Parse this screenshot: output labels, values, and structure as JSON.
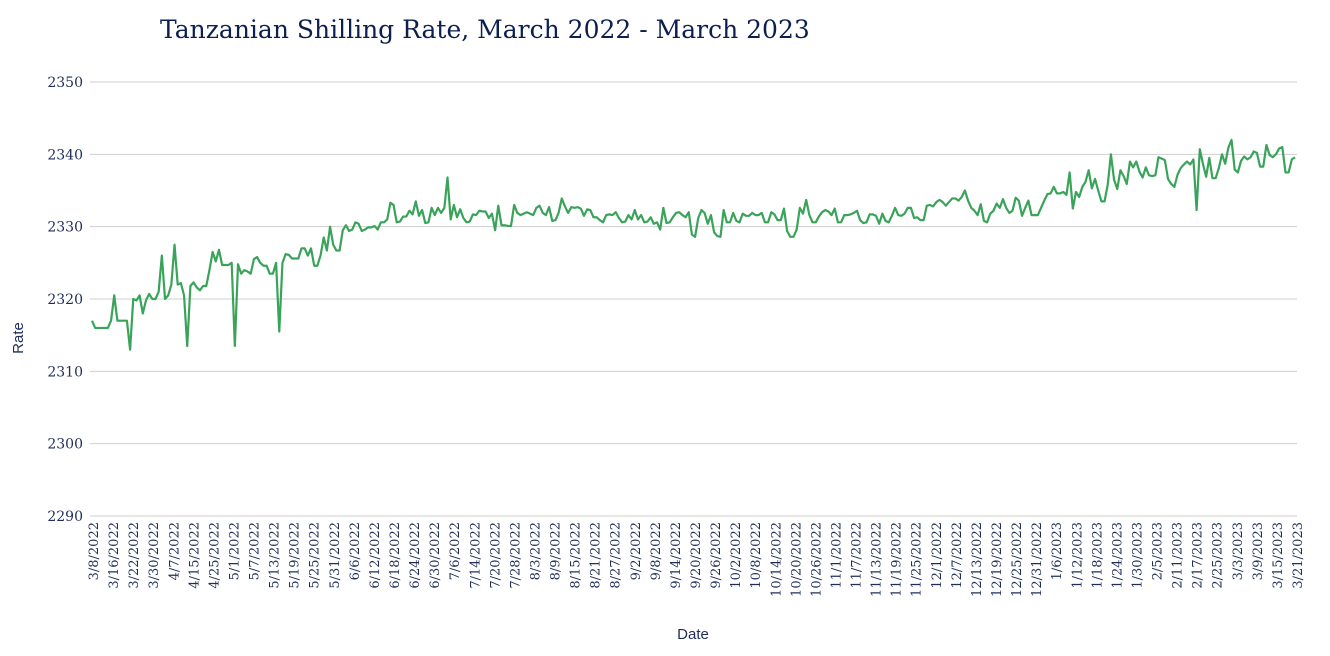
{
  "chart_data": {
    "type": "line",
    "title": "Tanzanian Shilling Rate, March 2022 - March 2023",
    "xlabel": "Date",
    "ylabel": "Rate",
    "ylim": [
      2290,
      2350
    ],
    "yticks": [
      2290,
      2300,
      2310,
      2320,
      2330,
      2340,
      2350
    ],
    "grid": true,
    "color": "#3aa35a",
    "x_tick_labels": [
      "3/8/2022",
      "3/16/2022",
      "3/22/2022",
      "3/30/2022",
      "4/7/2022",
      "4/15/2022",
      "4/25/2022",
      "5/1/2022",
      "5/7/2022",
      "5/13/2022",
      "5/19/2022",
      "5/25/2022",
      "5/31/2022",
      "6/6/2022",
      "6/12/2022",
      "6/18/2022",
      "6/24/2022",
      "6/30/2022",
      "7/6/2022",
      "7/14/2022",
      "7/20/2022",
      "7/28/2022",
      "8/3/2022",
      "8/9/2022",
      "8/15/2022",
      "8/21/2022",
      "8/27/2022",
      "9/2/2022",
      "9/8/2022",
      "9/14/2022",
      "9/20/2022",
      "9/26/2022",
      "10/2/2022",
      "10/8/2022",
      "10/14/2022",
      "10/20/2022",
      "10/26/2022",
      "11/1/2022",
      "11/7/2022",
      "11/13/2022",
      "11/19/2022",
      "11/25/2022",
      "12/1/2022",
      "12/7/2022",
      "12/13/2022",
      "12/19/2022",
      "12/25/2022",
      "12/31/2022",
      "1/6/2023",
      "1/12/2023",
      "1/18/2023",
      "1/24/2023",
      "1/30/2023",
      "2/5/2023",
      "2/11/2023",
      "2/17/2023",
      "2/25/2023",
      "3/3/2023",
      "3/9/2023",
      "3/15/2023",
      "3/21/2023"
    ],
    "series": [
      {
        "values": [
          2317,
          2316,
          2316,
          2316,
          2316,
          2316,
          2317,
          2320.5,
          2317,
          2317,
          2317,
          2317,
          2313,
          2320,
          2319.8,
          2320.5,
          2318,
          2319.8,
          2320.7,
          2320,
          2320,
          2321,
          2326,
          2320,
          2320.5,
          2322,
          2327.5,
          2322,
          2322.2,
          2320.5,
          2313.5,
          2321.8,
          2322.3,
          2321.6,
          2321.2,
          2321.8,
          2321.8,
          2324,
          2326.5,
          2325.2,
          2326.8,
          2324.7,
          2324.7,
          2324.7,
          2325,
          2313.5,
          2324.8,
          2323.5,
          2324,
          2323.8,
          2323.5,
          2325.5,
          2325.8,
          2325,
          2324.6,
          2324.6,
          2323.5,
          2323.5,
          2325,
          2315.5,
          2325,
          2326.2,
          2326.1,
          2325.6,
          2325.6,
          2325.6,
          2327,
          2327,
          2326,
          2327,
          2324.6,
          2324.6,
          2326,
          2328.5,
          2326.7,
          2330,
          2327.5,
          2326.7,
          2326.7,
          2329.5,
          2330.2,
          2329.4,
          2329.6,
          2330.6,
          2330.4,
          2329.4,
          2329.6,
          2329.9,
          2329.9,
          2330.1,
          2329.6,
          2330.6,
          2330.6,
          2331,
          2333.3,
          2333,
          2330.6,
          2330.7,
          2331.4,
          2331.4,
          2332.2,
          2331.7,
          2333.5,
          2331.5,
          2332.3,
          2330.5,
          2330.6,
          2332.6,
          2331.6,
          2332.6,
          2331.9,
          2332.6,
          2336.8,
          2331,
          2333,
          2331.3,
          2332.4,
          2331.2,
          2330.6,
          2330.7,
          2331.7,
          2331.6,
          2332.2,
          2332.1,
          2332.1,
          2331.2,
          2331.8,
          2329.5,
          2332.9,
          2330.2,
          2330.2,
          2330.1,
          2330.1,
          2333,
          2331.9,
          2331.6,
          2331.8,
          2332,
          2331.8,
          2331.6,
          2332.6,
          2332.9,
          2331.9,
          2331.6,
          2332.7,
          2330.8,
          2330.9,
          2331.9,
          2333.9,
          2332.8,
          2331.9,
          2332.7,
          2332.6,
          2332.7,
          2332.5,
          2331.5,
          2332.4,
          2332.3,
          2331.3,
          2331.3,
          2330.9,
          2330.6,
          2331.6,
          2331.7,
          2331.6,
          2332,
          2331.2,
          2330.6,
          2330.7,
          2331.6,
          2331,
          2332.3,
          2331,
          2331.6,
          2330.6,
          2330.7,
          2331.3,
          2330.4,
          2330.6,
          2329.6,
          2332.6,
          2330.5,
          2330.6,
          2331.3,
          2331.9,
          2332,
          2331.6,
          2331.3,
          2332,
          2328.9,
          2328.6,
          2331.2,
          2332.3,
          2331.9,
          2330.4,
          2331.6,
          2329.2,
          2328.7,
          2328.6,
          2332.3,
          2330.6,
          2330.6,
          2331.9,
          2330.8,
          2330.6,
          2331.8,
          2331.5,
          2331.5,
          2331.9,
          2331.6,
          2331.6,
          2331.9,
          2330.6,
          2330.6,
          2332,
          2331.7,
          2330.9,
          2330.9,
          2332.5,
          2329.4,
          2328.6,
          2328.6,
          2329.6,
          2332.6,
          2331.8,
          2333.7,
          2331.6,
          2330.6,
          2330.6,
          2331.4,
          2332,
          2332.3,
          2332.1,
          2331.6,
          2332.5,
          2330.6,
          2330.6,
          2331.6,
          2331.6,
          2331.7,
          2331.9,
          2332.2,
          2330.9,
          2330.5,
          2330.6,
          2331.7,
          2331.7,
          2331.5,
          2330.4,
          2331.8,
          2330.8,
          2330.6,
          2331.5,
          2332.6,
          2331.6,
          2331.5,
          2331.8,
          2332.6,
          2332.6,
          2331.2,
          2331.3,
          2330.9,
          2330.9,
          2332.9,
          2333,
          2332.8,
          2333.4,
          2333.7,
          2333.4,
          2332.9,
          2333.4,
          2333.9,
          2333.9,
          2333.6,
          2334.1,
          2335,
          2333.6,
          2332.6,
          2332.2,
          2331.6,
          2333.1,
          2330.8,
          2330.6,
          2331.8,
          2332.2,
          2333.2,
          2332.6,
          2333.8,
          2332.6,
          2331.9,
          2332.2,
          2334,
          2333.6,
          2331.5,
          2332.6,
          2333.6,
          2331.6,
          2331.6,
          2331.6,
          2332.6,
          2333.6,
          2334.5,
          2334.6,
          2335.5,
          2334.6,
          2334.6,
          2334.8,
          2334.4,
          2337.5,
          2332.5,
          2334.8,
          2334.1,
          2335.5,
          2336.2,
          2337.8,
          2335.3,
          2336.6,
          2335,
          2333.5,
          2333.5,
          2335.8,
          2340,
          2336.5,
          2335.2,
          2337.8,
          2337,
          2335.9,
          2339,
          2338.2,
          2339,
          2337.6,
          2336.8,
          2338.2,
          2337.1,
          2337,
          2337.1,
          2339.6,
          2339.4,
          2339.2,
          2336.6,
          2335.9,
          2335.5,
          2337.2,
          2338.1,
          2338.6,
          2339,
          2338.6,
          2339.3,
          2332.3,
          2340.7,
          2338.7,
          2336.9,
          2339.5,
          2336.7,
          2336.7,
          2338.1,
          2340,
          2338.7,
          2340.9,
          2342,
          2337.9,
          2337.5,
          2339.1,
          2339.7,
          2339.3,
          2339.6,
          2340.4,
          2340.2,
          2338.3,
          2338.3,
          2341.3,
          2339.9,
          2339.6,
          2340,
          2340.8,
          2341,
          2337.5,
          2337.5,
          2339.3,
          2339.6
        ]
      }
    ]
  }
}
